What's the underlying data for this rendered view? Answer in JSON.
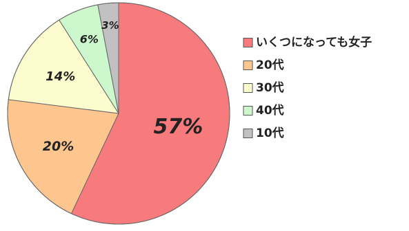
{
  "chart_data": {
    "type": "pie",
    "title": "",
    "categories": [
      "いくつになっても女子",
      "20代",
      "30代",
      "40代",
      "10代"
    ],
    "values": [
      57,
      20,
      14,
      6,
      3
    ],
    "labels": [
      "57%",
      "20%",
      "14%",
      "6%",
      "3%"
    ],
    "colors": [
      "#f77a7d",
      "#fdc68f",
      "#fdfccf",
      "#cdf7cd",
      "#c1c1c1"
    ],
    "start": "12 o'clock",
    "direction": "clockwise",
    "legend": {
      "position": "right",
      "items": [
        "いくつになっても女子",
        "20代",
        "30代",
        "40代",
        "10代"
      ]
    }
  }
}
